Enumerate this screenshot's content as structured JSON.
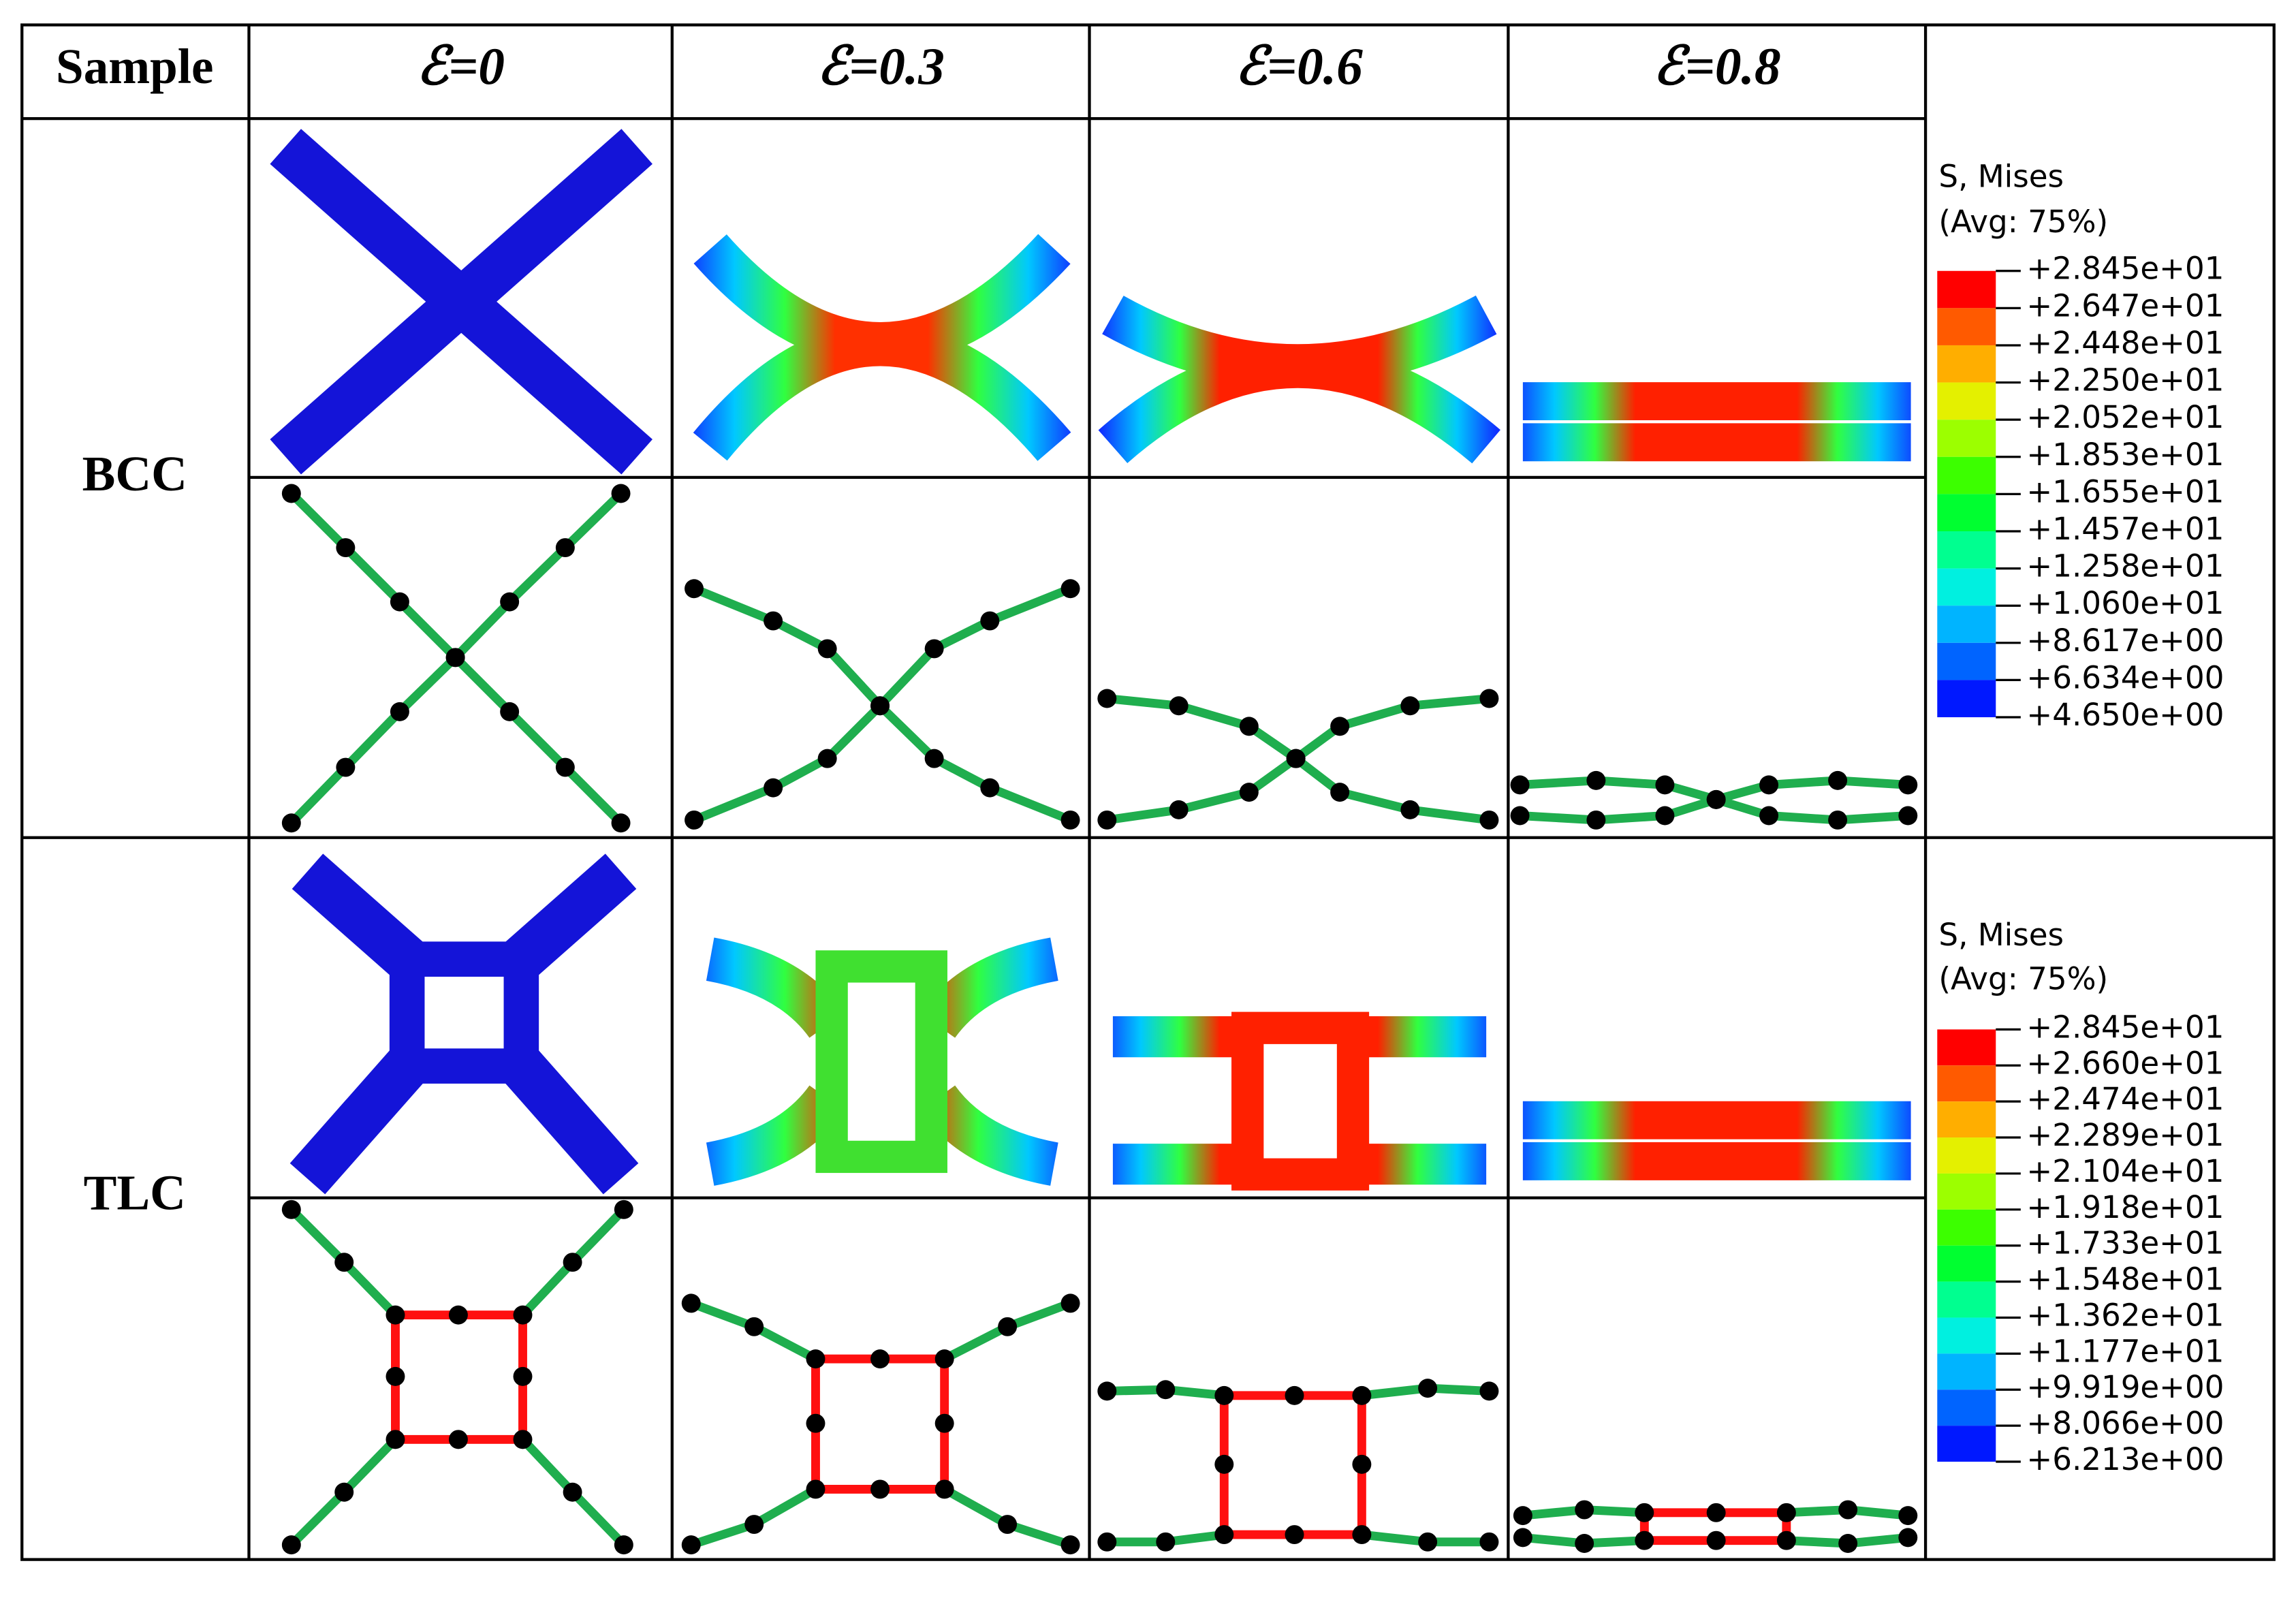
{
  "header": {
    "corner": "Sample",
    "strains": [
      "ℰ=0",
      "ℰ=0.3",
      "ℰ=0.6",
      "ℰ=0.8"
    ]
  },
  "rows": [
    {
      "label": "BCC",
      "legend": {
        "title": "S, Mises",
        "subtitle": "(Avg: 75%)",
        "values": [
          "+2.845e+01",
          "+2.647e+01",
          "+2.448e+01",
          "+2.250e+01",
          "+2.052e+01",
          "+1.853e+01",
          "+1.655e+01",
          "+1.457e+01",
          "+1.258e+01",
          "+1.060e+01",
          "+8.617e+00",
          "+6.634e+00",
          "+4.650e+00"
        ]
      }
    },
    {
      "label": "TLC",
      "legend": {
        "title": "S, Mises",
        "subtitle": "(Avg: 75%)",
        "values": [
          "+2.845e+01",
          "+2.660e+01",
          "+2.474e+01",
          "+2.289e+01",
          "+2.104e+01",
          "+1.918e+01",
          "+1.733e+01",
          "+1.548e+01",
          "+1.362e+01",
          "+1.177e+01",
          "+9.919e+00",
          "+8.066e+00",
          "+6.213e+00"
        ]
      }
    }
  ]
}
